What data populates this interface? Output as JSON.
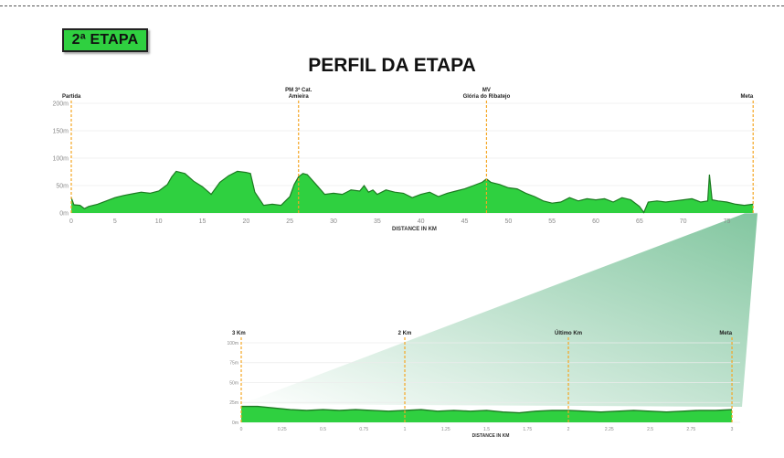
{
  "stage_label": "2ª ETAPA",
  "title": "PERFIL DA ETAPA",
  "colors": {
    "fill": "#2fd040",
    "line": "#1d7a22",
    "marker": "#f5a623",
    "zoom_band": "#2fa060"
  },
  "watermark": "",
  "chart_data": [
    {
      "type": "area",
      "name": "main-profile",
      "xlabel": "DISTANCE IN KM",
      "ylabel": "",
      "xlim": [
        0,
        78.5
      ],
      "ylim": [
        0,
        200
      ],
      "xticks": [
        0,
        5,
        10,
        15,
        20,
        25,
        30,
        35,
        40,
        45,
        50,
        55,
        60,
        65,
        70,
        75
      ],
      "yticks": [
        0,
        50,
        100,
        150,
        200
      ],
      "ytick_labels": [
        "0m",
        "50m",
        "100m",
        "150m",
        "200m"
      ],
      "x": [
        0,
        0.3,
        1,
        1.5,
        2,
        3,
        4,
        5,
        6,
        7,
        8,
        9,
        10,
        11,
        11.5,
        12,
        13,
        14,
        15,
        16,
        17,
        18,
        19,
        20,
        20.5,
        21,
        22,
        23,
        24,
        25,
        25.5,
        26,
        26.5,
        27,
        28,
        29,
        30,
        31,
        32,
        33,
        33.5,
        34,
        34.5,
        35,
        36,
        37,
        38,
        39,
        40,
        41,
        42,
        43,
        44,
        45,
        46,
        47,
        47.5,
        48,
        49,
        50,
        51,
        52,
        53,
        54,
        55,
        56,
        57,
        58,
        59,
        60,
        61,
        62,
        63,
        64,
        65,
        65.5,
        66,
        67,
        68,
        69,
        70,
        71,
        72,
        72.8,
        73,
        73.3,
        74,
        75,
        76,
        77,
        78
      ],
      "y": [
        28,
        15,
        14,
        8,
        12,
        16,
        22,
        28,
        32,
        35,
        38,
        36,
        40,
        52,
        66,
        76,
        72,
        58,
        48,
        34,
        56,
        68,
        76,
        74,
        72,
        38,
        14,
        16,
        14,
        30,
        52,
        66,
        72,
        70,
        52,
        34,
        36,
        34,
        42,
        40,
        50,
        38,
        42,
        34,
        42,
        38,
        36,
        28,
        34,
        38,
        30,
        36,
        40,
        44,
        50,
        56,
        62,
        56,
        52,
        46,
        44,
        36,
        30,
        22,
        18,
        20,
        28,
        22,
        26,
        24,
        26,
        20,
        28,
        24,
        12,
        1,
        20,
        22,
        20,
        22,
        24,
        26,
        20,
        22,
        70,
        24,
        22,
        20,
        16,
        14,
        16
      ],
      "markers": [
        {
          "km": 0,
          "label": "Partida"
        },
        {
          "km": 26,
          "label": "PM 3ª Cat.\nAmieira"
        },
        {
          "km": 47.5,
          "label": "MV\nGlória do Ribatejo"
        },
        {
          "km": 78,
          "label": "Meta"
        }
      ]
    },
    {
      "type": "area",
      "name": "last-3km-profile",
      "xlabel": "DISTANCE IN KM",
      "ylabel": "",
      "xlim": [
        0,
        3.05
      ],
      "ylim": [
        0,
        100
      ],
      "xticks": [
        0,
        0.25,
        0.5,
        0.75,
        1,
        1.25,
        1.5,
        1.75,
        2,
        2.25,
        2.5,
        2.75,
        3
      ],
      "yticks": [
        0,
        25,
        50,
        75,
        100
      ],
      "ytick_labels": [
        "0m",
        "25m",
        "50m",
        "75m",
        "100m"
      ],
      "x": [
        0,
        0.1,
        0.2,
        0.3,
        0.4,
        0.5,
        0.6,
        0.7,
        0.8,
        0.9,
        1,
        1.1,
        1.2,
        1.3,
        1.4,
        1.5,
        1.6,
        1.7,
        1.8,
        1.9,
        2,
        2.1,
        2.2,
        2.3,
        2.4,
        2.5,
        2.6,
        2.7,
        2.8,
        2.9,
        3
      ],
      "y": [
        20,
        20,
        18,
        16,
        15,
        16,
        15,
        16,
        15,
        14,
        15,
        16,
        14,
        15,
        14,
        15,
        13,
        12,
        14,
        15,
        15,
        14,
        13,
        14,
        15,
        14,
        13,
        14,
        15,
        15,
        16
      ],
      "markers": [
        {
          "km": 0,
          "label": "3 Km"
        },
        {
          "km": 1,
          "label": "2 Km"
        },
        {
          "km": 2,
          "label": "Último Km"
        },
        {
          "km": 3,
          "label": "Meta"
        }
      ]
    }
  ]
}
